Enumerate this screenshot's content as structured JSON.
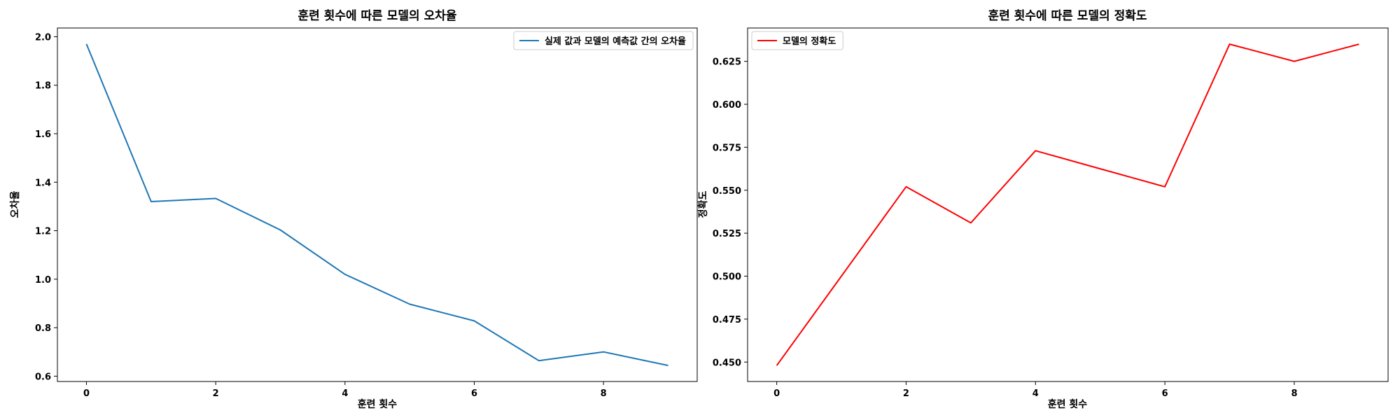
{
  "chart_data": [
    {
      "type": "line",
      "title": "훈련 횟수에 따른 모델의 오차율",
      "xlabel": "훈련 횟수",
      "ylabel": "오차율",
      "x": [
        0,
        1,
        2,
        3,
        4,
        5,
        6,
        7,
        8,
        9
      ],
      "series": [
        {
          "name": "실제 값과 모델의 예측값 간의 오차율",
          "color": "#1f77b4",
          "values": [
            1.97,
            1.32,
            1.333,
            1.203,
            1.02,
            0.897,
            0.828,
            0.664,
            0.7,
            0.644
          ]
        }
      ],
      "xlim": [
        -0.45,
        9.45
      ],
      "ylim": [
        0.578,
        2.036
      ],
      "xticks": [
        0,
        2,
        4,
        6,
        8
      ],
      "xtick_labels": [
        "0",
        "2",
        "4",
        "6",
        "8"
      ],
      "yticks": [
        0.6,
        0.8,
        1.0,
        1.2,
        1.4,
        1.6,
        1.8,
        2.0
      ],
      "ytick_labels": [
        "0.6",
        "0.8",
        "1.0",
        "1.2",
        "1.4",
        "1.6",
        "1.8",
        "2.0"
      ],
      "legend": "top-right",
      "grid": false
    },
    {
      "type": "line",
      "title": "훈련 횟수에 따른 모델의 정확도",
      "xlabel": "훈련 횟수",
      "ylabel": "정확도",
      "x": [
        0,
        1,
        2,
        3,
        4,
        5,
        6,
        7,
        8,
        9
      ],
      "series": [
        {
          "name": "모델의 정확도",
          "color": "#ff0000",
          "values": [
            0.448,
            0.5,
            0.552,
            0.531,
            0.573,
            0.5625,
            0.552,
            0.635,
            0.625,
            0.635
          ]
        }
      ],
      "xlim": [
        -0.45,
        9.45
      ],
      "ylim": [
        0.4387,
        0.6444
      ],
      "xticks": [
        0,
        2,
        4,
        6,
        8
      ],
      "xtick_labels": [
        "0",
        "2",
        "4",
        "6",
        "8"
      ],
      "yticks": [
        0.45,
        0.475,
        0.5,
        0.525,
        0.55,
        0.575,
        0.6,
        0.625
      ],
      "ytick_labels": [
        "0.450",
        "0.475",
        "0.500",
        "0.525",
        "0.550",
        "0.575",
        "0.600",
        "0.625"
      ],
      "legend": "top-left",
      "grid": false
    }
  ]
}
